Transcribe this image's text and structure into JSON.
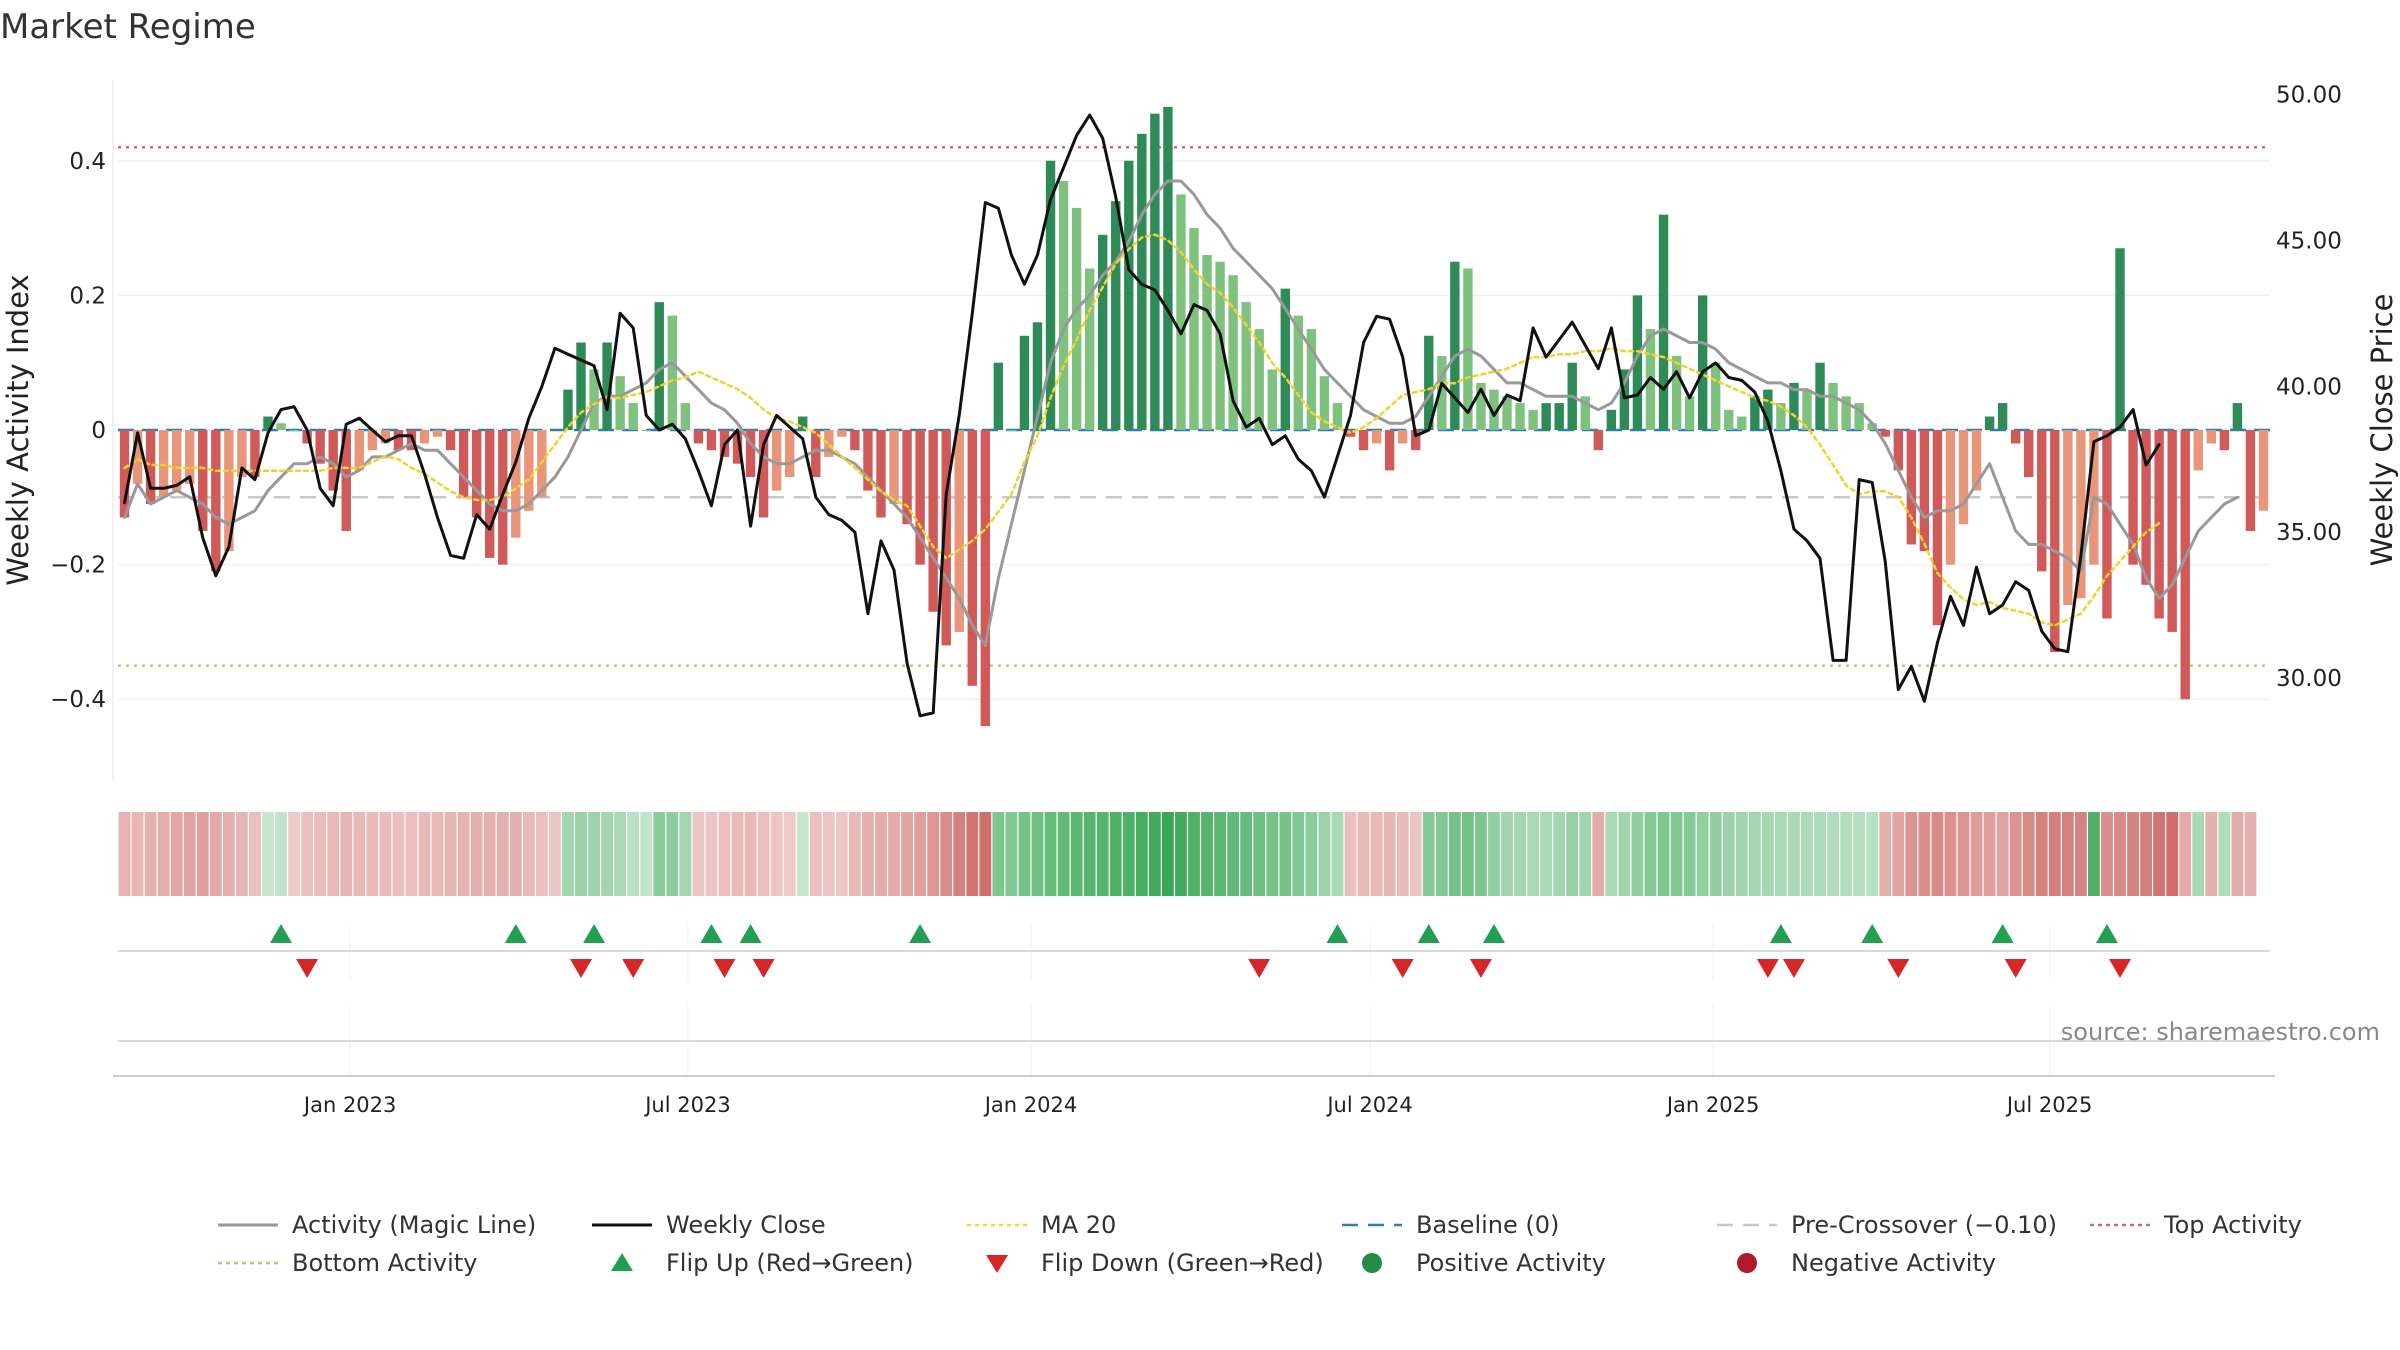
{
  "chart_data": {
    "type": "bar",
    "title": "Market Regime",
    "ylabel": "Weekly Activity Index",
    "y2label": "Weekly Close Price",
    "ylim": [
      -0.52,
      0.52
    ],
    "y2lim": [
      26.5,
      50.5
    ],
    "yticks": [
      {
        "v": 0.4,
        "t": "0.4"
      },
      {
        "v": 0.2,
        "t": "0.2"
      },
      {
        "v": 0,
        "t": "0"
      },
      {
        "v": -0.2,
        "t": "−0.2"
      },
      {
        "v": -0.4,
        "t": "−0.4"
      }
    ],
    "y2ticks": [
      {
        "v": 50,
        "t": "50.00"
      },
      {
        "v": 45,
        "t": "45.00"
      },
      {
        "v": 40,
        "t": "40.00"
      },
      {
        "v": 35,
        "t": "35.00"
      },
      {
        "v": 30,
        "t": "30.00"
      }
    ],
    "xticks": [
      {
        "week": 17.8,
        "t": "Jan 2023"
      },
      {
        "week": 43.7,
        "t": "Jul 2023"
      },
      {
        "week": 70.0,
        "t": "Jan 2024"
      },
      {
        "week": 96.0,
        "t": "Jul 2024"
      },
      {
        "week": 122.3,
        "t": "Jan 2025"
      },
      {
        "week": 148.1,
        "t": "Jul 2025"
      }
    ],
    "reference_lines": {
      "top_activity": 0.42,
      "bottom_activity": -0.35,
      "baseline": 0,
      "pre_crossover": -0.1
    },
    "activity": [
      -0.13,
      -0.08,
      -0.11,
      -0.1,
      -0.09,
      -0.08,
      -0.15,
      -0.21,
      -0.18,
      -0.07,
      -0.07,
      0.02,
      0.01,
      0.0,
      -0.02,
      -0.05,
      -0.09,
      -0.15,
      -0.06,
      -0.03,
      -0.02,
      -0.03,
      -0.03,
      -0.02,
      -0.01,
      -0.03,
      -0.1,
      -0.13,
      -0.19,
      -0.2,
      -0.16,
      -0.12,
      -0.1,
      0.0,
      0.06,
      0.13,
      0.09,
      0.13,
      0.08,
      0.04,
      0.0,
      0.19,
      0.17,
      0.04,
      -0.02,
      -0.03,
      -0.04,
      -0.05,
      -0.07,
      -0.13,
      -0.09,
      -0.07,
      0.02,
      -0.07,
      -0.04,
      -0.01,
      -0.03,
      -0.09,
      -0.13,
      -0.11,
      -0.14,
      -0.2,
      -0.27,
      -0.32,
      -0.3,
      -0.38,
      -0.44,
      0.1,
      0.0,
      0.14,
      0.16,
      0.4,
      0.37,
      0.33,
      0.24,
      0.29,
      0.34,
      0.4,
      0.44,
      0.47,
      0.48,
      0.35,
      0.3,
      0.26,
      0.25,
      0.23,
      0.19,
      0.15,
      0.09,
      0.21,
      0.17,
      0.15,
      0.08,
      0.04,
      -0.01,
      -0.03,
      -0.02,
      -0.06,
      -0.02,
      -0.03,
      0.14,
      0.11,
      0.25,
      0.24,
      0.07,
      0.06,
      0.05,
      0.04,
      0.03,
      0.04,
      0.04,
      0.1,
      0.05,
      -0.03,
      0.03,
      0.09,
      0.2,
      0.15,
      0.32,
      0.11,
      0.05,
      0.2,
      0.1,
      0.03,
      0.02,
      0.05,
      0.06,
      0.04,
      0.07,
      0.06,
      0.1,
      0.07,
      0.05,
      0.04,
      0.01,
      -0.01,
      -0.06,
      -0.17,
      -0.18,
      -0.29,
      -0.2,
      -0.14,
      -0.09,
      0.02,
      0.04,
      -0.02,
      -0.07,
      -0.21,
      -0.33,
      -0.26,
      -0.25,
      -0.2,
      -0.28,
      0.27,
      -0.2,
      -0.23,
      -0.28,
      -0.3,
      -0.4,
      -0.06,
      -0.02,
      -0.03,
      0.04,
      -0.15,
      -0.12
    ],
    "weekly_close": [
      36.0,
      38.4,
      36.5,
      36.5,
      36.6,
      36.9,
      34.8,
      33.5,
      34.5,
      37.2,
      36.8,
      38.4,
      39.2,
      39.3,
      38.5,
      36.5,
      35.9,
      38.7,
      38.9,
      38.5,
      38.1,
      38.3,
      38.3,
      37.0,
      35.5,
      34.2,
      34.1,
      35.6,
      35.1,
      36.3,
      37.4,
      38.9,
      40.0,
      41.3,
      41.1,
      40.9,
      40.7,
      39.2,
      42.5,
      42.0,
      39.0,
      38.5,
      38.7,
      38.2,
      37.1,
      35.9,
      38.0,
      38.5,
      35.2,
      38.0,
      39.0,
      38.6,
      38.2,
      36.2,
      35.6,
      35.4,
      35.0,
      32.2,
      34.7,
      33.7,
      30.5,
      28.7,
      28.8,
      36.3,
      39.0,
      42.5,
      46.3,
      46.1,
      44.5,
      43.5,
      44.5,
      46.4,
      47.5,
      48.6,
      49.3,
      48.5,
      46.5,
      44.0,
      43.5,
      43.3,
      42.6,
      41.8,
      42.8,
      42.6,
      41.8,
      39.5,
      38.6,
      38.9,
      38.0,
      38.3,
      37.5,
      37.1,
      36.2,
      37.6,
      39.0,
      41.5,
      42.4,
      42.3,
      41.0,
      38.3,
      38.5,
      40.1,
      39.6,
      39.1,
      39.9,
      39.0,
      39.7,
      39.5,
      42.0,
      41.0,
      41.6,
      42.2,
      41.4,
      40.6,
      42.0,
      39.6,
      39.7,
      40.3,
      39.9,
      40.5,
      39.6,
      40.5,
      40.8,
      40.3,
      40.2,
      39.8,
      38.8,
      37.1,
      35.1,
      34.7,
      34.1,
      30.6,
      30.6,
      36.8,
      36.7,
      34.0,
      29.6,
      30.4,
      29.2,
      31.2,
      32.8,
      31.8,
      33.8,
      32.2,
      32.5,
      33.3,
      33.0,
      31.6,
      31.0,
      30.9,
      34.2,
      38.1,
      38.3,
      38.6,
      39.2,
      37.3,
      38.0
    ],
    "ma20": [
      37.2,
      37.5,
      37.3,
      37.3,
      37.2,
      37.2,
      37.2,
      37.1,
      37.1,
      37.1,
      37.1,
      37.1,
      37.1,
      37.1,
      37.1,
      37.1,
      37.2,
      37.2,
      37.2,
      37.4,
      37.6,
      37.5,
      37.2,
      37.0,
      36.7,
      36.4,
      36.2,
      36.1,
      36.1,
      36.2,
      36.5,
      36.8,
      37.4,
      38.0,
      38.6,
      39.1,
      39.4,
      39.6,
      39.6,
      39.7,
      39.8,
      40.0,
      40.2,
      40.3,
      40.5,
      40.3,
      40.1,
      39.9,
      39.6,
      39.2,
      38.9,
      38.8,
      38.6,
      38.4,
      38.0,
      37.6,
      37.2,
      36.8,
      36.4,
      36.1,
      35.9,
      35.2,
      34.5,
      34.1,
      34.4,
      34.7,
      35.1,
      35.7,
      36.3,
      37.4,
      38.3,
      39.6,
      40.7,
      41.6,
      42.6,
      43.4,
      44.2,
      44.7,
      45.1,
      45.2,
      45.0,
      44.6,
      44.0,
      43.5,
      43.2,
      42.7,
      42.1,
      41.5,
      40.8,
      40.3,
      39.7,
      39.1,
      38.8,
      38.6,
      38.4,
      38.6,
      38.9,
      39.3,
      39.7,
      39.8,
      39.9,
      40.1,
      40.1,
      40.3,
      40.4,
      40.5,
      40.6,
      40.8,
      41.0,
      41.0,
      41.1,
      41.1,
      41.2,
      41.2,
      41.3,
      41.2,
      41.2,
      41.1,
      41.0,
      40.8,
      40.6,
      40.4,
      40.2,
      40.0,
      39.8,
      39.6,
      39.5,
      39.3,
      39.0,
      38.6,
      38.0,
      37.3,
      36.6,
      36.3,
      36.4,
      36.4,
      36.2,
      35.5,
      34.6,
      33.6,
      33.1,
      32.7,
      32.5,
      32.6,
      32.4,
      32.3,
      32.2,
      31.9,
      31.8,
      32.0,
      32.2,
      32.8,
      33.5,
      34.0,
      34.5,
      35.0,
      35.3
    ],
    "magic_line": [
      -0.13,
      -0.08,
      -0.11,
      -0.1,
      -0.09,
      -0.1,
      -0.11,
      -0.13,
      -0.14,
      -0.13,
      -0.12,
      -0.09,
      -0.07,
      -0.05,
      -0.05,
      -0.04,
      -0.05,
      -0.07,
      -0.06,
      -0.04,
      -0.04,
      -0.03,
      -0.02,
      -0.03,
      -0.03,
      -0.05,
      -0.07,
      -0.09,
      -0.11,
      -0.12,
      -0.12,
      -0.11,
      -0.09,
      -0.07,
      -0.04,
      0.0,
      0.04,
      0.05,
      0.05,
      0.06,
      0.07,
      0.09,
      0.1,
      0.08,
      0.06,
      0.04,
      0.03,
      0.01,
      -0.02,
      -0.04,
      -0.05,
      -0.05,
      -0.04,
      -0.03,
      -0.03,
      -0.04,
      -0.05,
      -0.07,
      -0.09,
      -0.11,
      -0.13,
      -0.16,
      -0.19,
      -0.22,
      -0.25,
      -0.29,
      -0.32,
      -0.22,
      -0.14,
      -0.06,
      0.02,
      0.1,
      0.15,
      0.18,
      0.2,
      0.23,
      0.25,
      0.28,
      0.32,
      0.35,
      0.37,
      0.37,
      0.35,
      0.32,
      0.3,
      0.27,
      0.25,
      0.23,
      0.21,
      0.18,
      0.15,
      0.12,
      0.09,
      0.07,
      0.05,
      0.03,
      0.02,
      0.01,
      0.01,
      0.02,
      0.05,
      0.08,
      0.11,
      0.12,
      0.11,
      0.09,
      0.07,
      0.07,
      0.06,
      0.05,
      0.05,
      0.05,
      0.04,
      0.03,
      0.04,
      0.07,
      0.11,
      0.14,
      0.15,
      0.14,
      0.13,
      0.13,
      0.12,
      0.1,
      0.09,
      0.08,
      0.07,
      0.07,
      0.06,
      0.06,
      0.05,
      0.05,
      0.04,
      0.03,
      0.01,
      -0.02,
      -0.06,
      -0.1,
      -0.13,
      -0.12,
      -0.12,
      -0.11,
      -0.08,
      -0.05,
      -0.1,
      -0.15,
      -0.17,
      -0.17,
      -0.18,
      -0.19,
      -0.21,
      -0.1,
      -0.11,
      -0.14,
      -0.17,
      -0.22,
      -0.25,
      -0.23,
      -0.19,
      -0.15,
      -0.13,
      -0.11,
      -0.1
    ],
    "regime_strip": [
      -0.24,
      -0.22,
      -0.25,
      -0.28,
      -0.33,
      -0.36,
      -0.38,
      -0.32,
      -0.27,
      -0.22,
      -0.15,
      0.05,
      0.1,
      -0.08,
      -0.14,
      -0.17,
      -0.2,
      -0.21,
      -0.2,
      -0.18,
      -0.17,
      -0.16,
      -0.16,
      -0.18,
      -0.2,
      -0.22,
      -0.24,
      -0.25,
      -0.26,
      -0.27,
      -0.25,
      -0.2,
      -0.15,
      -0.1,
      0.3,
      0.36,
      0.34,
      0.3,
      0.26,
      0.15,
      0.1,
      0.45,
      0.44,
      0.3,
      -0.1,
      -0.12,
      -0.15,
      -0.18,
      -0.2,
      -0.15,
      -0.12,
      -0.08,
      0.05,
      -0.16,
      -0.12,
      -0.1,
      -0.2,
      -0.26,
      -0.28,
      -0.3,
      -0.33,
      -0.38,
      -0.44,
      -0.52,
      -0.6,
      -0.68,
      -0.75,
      0.55,
      0.52,
      0.6,
      0.64,
      0.7,
      0.74,
      0.78,
      0.8,
      0.82,
      0.84,
      0.86,
      0.9,
      0.95,
      1.0,
      0.93,
      0.85,
      0.82,
      0.78,
      0.74,
      0.7,
      0.66,
      0.6,
      0.58,
      0.52,
      0.45,
      0.35,
      0.25,
      -0.15,
      -0.18,
      -0.2,
      -0.22,
      -0.18,
      -0.12,
      0.5,
      0.52,
      0.6,
      0.62,
      0.55,
      0.4,
      0.32,
      0.3,
      0.26,
      0.25,
      0.3,
      0.38,
      0.32,
      -0.3,
      0.25,
      0.32,
      0.4,
      0.5,
      0.55,
      0.52,
      0.48,
      0.42,
      0.4,
      0.35,
      0.32,
      0.3,
      0.28,
      0.26,
      0.25,
      0.24,
      0.23,
      0.22,
      0.2,
      0.18,
      0.15,
      -0.25,
      -0.35,
      -0.45,
      -0.5,
      -0.55,
      -0.48,
      -0.45,
      -0.4,
      -0.38,
      -0.36,
      -0.45,
      -0.55,
      -0.6,
      -0.62,
      -0.6,
      -0.58,
      0.85,
      -0.5,
      -0.55,
      -0.58,
      -0.62,
      -0.72,
      -0.75,
      -0.3,
      0.25,
      -0.25,
      0.2,
      -0.3,
      -0.25
    ],
    "flip_up_weeks": [
      12,
      30,
      36,
      45,
      48,
      61,
      93,
      100,
      105,
      127,
      134,
      144,
      152
    ],
    "flip_down_weeks": [
      14,
      35,
      39,
      46,
      49,
      87,
      98,
      104,
      126,
      128,
      136,
      145,
      153
    ],
    "legend": [
      {
        "label": "Activity (Magic Line)",
        "kind": "line",
        "color": "#999999"
      },
      {
        "label": "Weekly Close",
        "kind": "line",
        "color": "#111111"
      },
      {
        "label": "MA 20",
        "kind": "dotted",
        "color": "#f2d22e"
      },
      {
        "label": "Baseline (0)",
        "kind": "dashed",
        "color": "#2f7fb5"
      },
      {
        "label": "Pre-Crossover (−0.10)",
        "kind": "dashed",
        "color": "#c8c8c8"
      },
      {
        "label": "Top Activity",
        "kind": "dotted",
        "color": "#d66576"
      },
      {
        "label": "Bottom Activity",
        "kind": "dotted",
        "color": "#a9d46e"
      },
      {
        "label": "Flip Up (Red→Green)",
        "kind": "tri-up",
        "color": "#22a052"
      },
      {
        "label": "Flip Down (Green→Red)",
        "kind": "tri-down",
        "color": "#d62728"
      },
      {
        "label": "Positive Activity",
        "kind": "dot",
        "color": "#238b45"
      },
      {
        "label": "Negative Activity",
        "kind": "dot",
        "color": "#b2182b"
      }
    ],
    "colors": {
      "pos_dark": "#2e8b57",
      "pos_light": "#7fc27f",
      "neg_dark": "#d05a5a",
      "neg_light": "#e8957a",
      "close": "#111111",
      "magic": "#999999",
      "ma20": "#f2d22e",
      "baseline": "#2f7fb5",
      "precross": "#c8c8c8",
      "top": "#d66576",
      "bottom": "#a9d46e",
      "flip_up": "#22a052",
      "flip_down": "#d62728"
    }
  },
  "source": "source: sharemaestro.com"
}
